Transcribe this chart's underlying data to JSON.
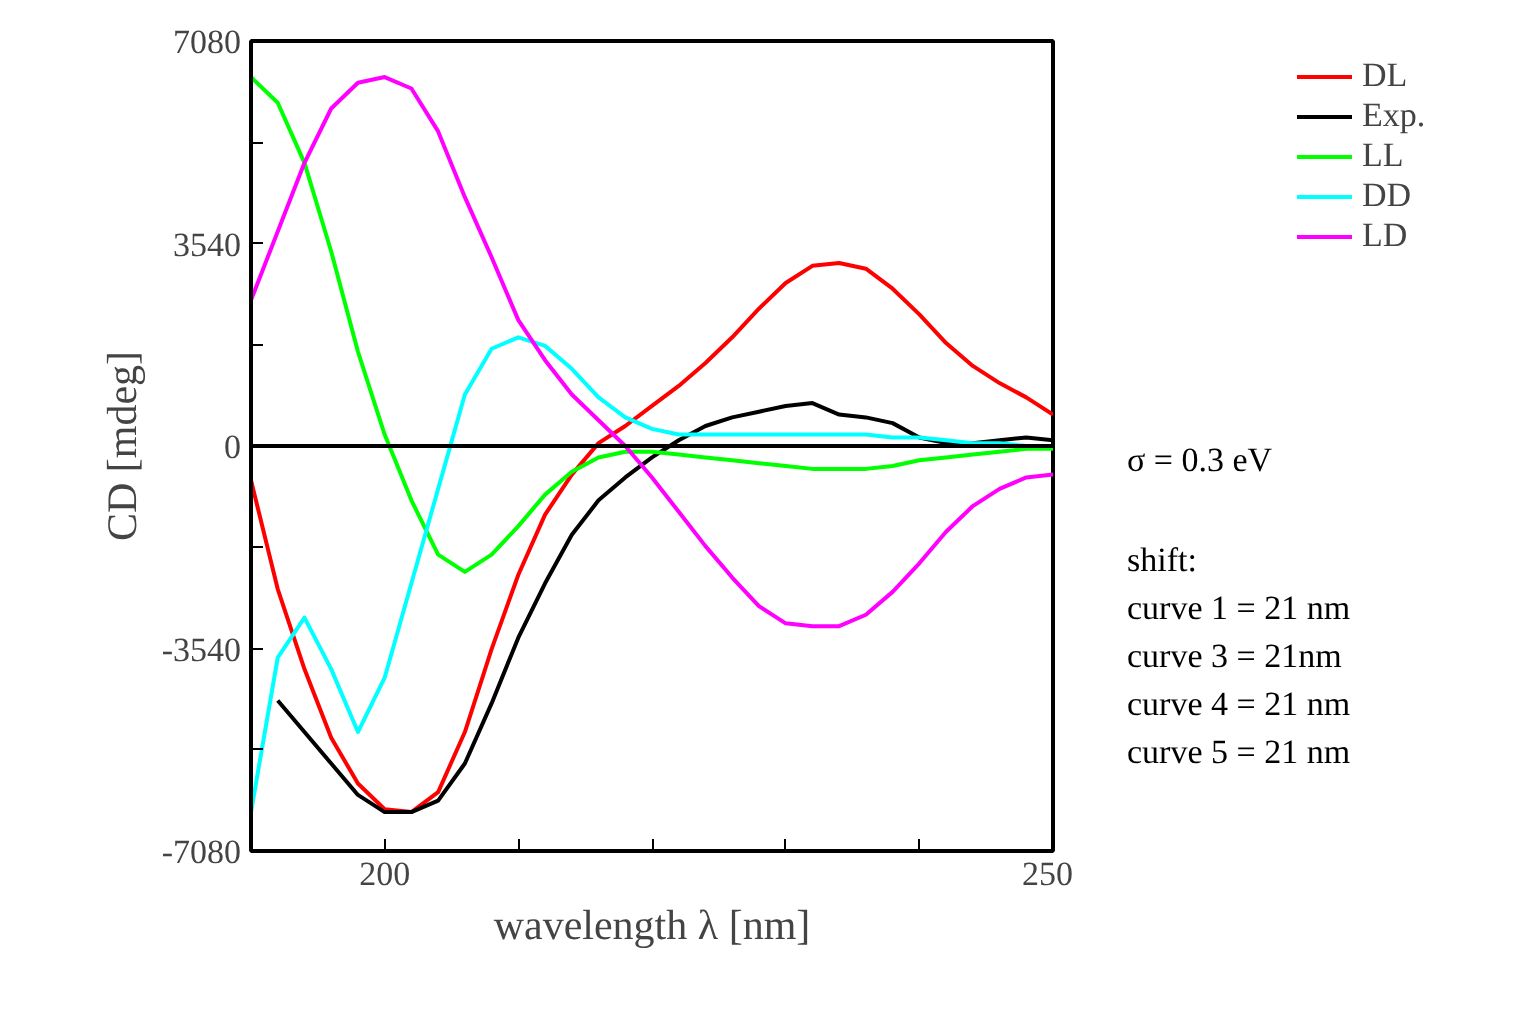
{
  "chart_data": {
    "type": "line",
    "xlabel": "wavelength λ [nm]",
    "ylabel": "CD [mdeg]",
    "x": [
      190,
      192,
      194,
      196,
      198,
      200,
      202,
      204,
      206,
      208,
      210,
      212,
      214,
      216,
      218,
      220,
      222,
      224,
      226,
      228,
      230,
      232,
      234,
      236,
      238,
      240,
      242,
      244,
      246,
      248,
      250
    ],
    "xlim": [
      190,
      250
    ],
    "xticks": [
      200,
      {
        "value": 210,
        "label": null
      },
      {
        "value": 220,
        "label": null
      },
      {
        "value": 230,
        "label": null
      },
      {
        "value": 240,
        "label": null
      },
      250
    ],
    "ylim": [
      -7080,
      7080
    ],
    "yticks": [
      -7080,
      {
        "value": -5310,
        "label": null
      },
      -3540,
      {
        "value": -1770,
        "label": null
      },
      0,
      {
        "value": 1770,
        "label": null
      },
      3540,
      {
        "value": 5310,
        "label": null
      },
      7080
    ],
    "series": [
      {
        "name": "DL",
        "color": "#ff0000",
        "values": [
          -600,
          -2500,
          -3900,
          -5100,
          -5900,
          -6350,
          -6400,
          -6050,
          -5000,
          -3550,
          -2250,
          -1200,
          -500,
          50,
          350,
          700,
          1050,
          1450,
          1900,
          2400,
          2850,
          3150,
          3200,
          3100,
          2750,
          2300,
          1800,
          1400,
          1100,
          850,
          550
        ]
      },
      {
        "name": "Exp.",
        "color": "#000000",
        "values": [
          null,
          -4450,
          -5000,
          -5550,
          -6100,
          -6400,
          -6400,
          -6200,
          -5550,
          -4500,
          -3350,
          -2400,
          -1550,
          -950,
          -550,
          -200,
          100,
          350,
          500,
          600,
          700,
          750,
          550,
          500,
          400,
          150,
          50,
          50,
          100,
          150,
          100
        ]
      },
      {
        "name": "LL",
        "color": "#00ff00",
        "values": [
          6450,
          6000,
          4950,
          3400,
          1650,
          200,
          -950,
          -1900,
          -2200,
          -1900,
          -1400,
          -850,
          -450,
          -200,
          -100,
          -100,
          -150,
          -200,
          -250,
          -300,
          -350,
          -400,
          -400,
          -400,
          -350,
          -250,
          -200,
          -150,
          -100,
          -50,
          -50
        ]
      },
      {
        "name": "DD",
        "color": "#00ffff",
        "values": [
          -6400,
          -3700,
          -3000,
          -3900,
          -5000,
          -4050,
          -2400,
          -750,
          900,
          1700,
          1900,
          1750,
          1350,
          850,
          500,
          300,
          200,
          200,
          200,
          200,
          200,
          200,
          200,
          200,
          150,
          150,
          100,
          50,
          50,
          0,
          0
        ]
      },
      {
        "name": "LD",
        "color": "#ff00ff",
        "values": [
          2550,
          3750,
          4950,
          5900,
          6350,
          6450,
          6250,
          5500,
          4350,
          3300,
          2200,
          1500,
          900,
          450,
          0,
          -550,
          -1150,
          -1750,
          -2300,
          -2800,
          -3100,
          -3150,
          -3150,
          -2950,
          -2550,
          -2050,
          -1500,
          -1050,
          -750,
          -550,
          -500
        ]
      }
    ],
    "ref_lines": [
      {
        "axis": "y",
        "value": 0,
        "color": "#000000"
      }
    ],
    "annotations": [
      "σ = 0.3 eV",
      "shift:",
      "curve 1 = 21 nm",
      "curve 3 = 21nm",
      "curve 4 = 21 nm",
      "curve 5 = 21 nm"
    ],
    "legend": "top right",
    "grid": false,
    "marker": "none",
    "line_style": "solid"
  }
}
